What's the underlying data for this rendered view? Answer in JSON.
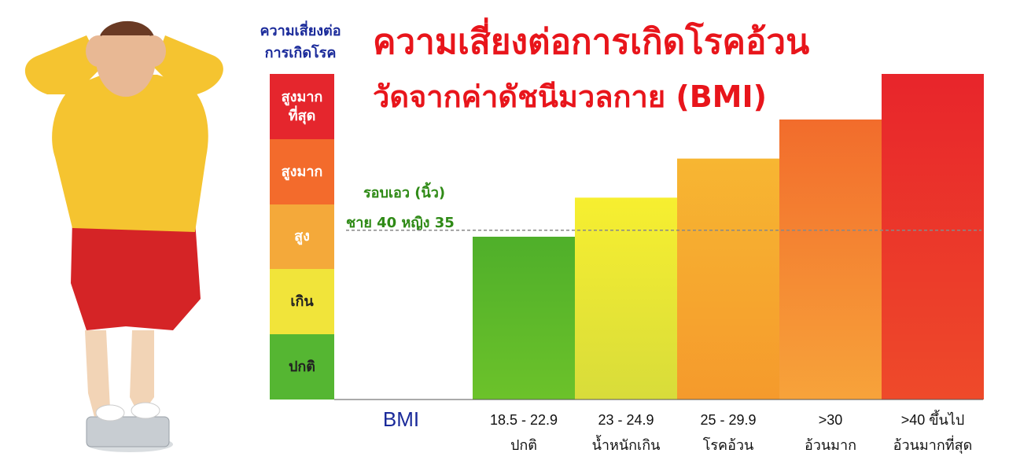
{
  "risk_scale": {
    "header": [
      "ความเสี่ยงต่อ",
      "การเกิดโรค"
    ],
    "levels": [
      {
        "label": "สูงมาก\nที่สุด",
        "color": "#e5262d"
      },
      {
        "label": "สูงมาก",
        "color": "#f36b2c"
      },
      {
        "label": "สูง",
        "color": "#f4a93a"
      },
      {
        "label": "เกิน",
        "color": "#f1e43a"
      },
      {
        "label": "ปกติ",
        "color": "#55b632"
      }
    ]
  },
  "title": {
    "line1": "ความเสี่ยงต่อการเกิดโรคอ้วน",
    "line2": "วัดจากค่าดัชนีมวลกาย (BMI)"
  },
  "waist": {
    "line1": "รอบเอว (นิ้ว)",
    "line2": "ชาย 40  หญิง 35"
  },
  "chart_data": {
    "type": "bar",
    "xlabel": "BMI",
    "ylabel": "ความเสี่ยงต่อการเกิดโรค",
    "categories": [
      "18.5 - 22.9",
      "23 - 24.9",
      "25 - 29.9",
      ">30",
      ">40 ขึ้นไป"
    ],
    "category_names": [
      "ปกติ",
      "น้ำหนักเกิน",
      "โรคอ้วน",
      "อ้วนมาก",
      "อ้วนมากที่สุด"
    ],
    "values": [
      2.5,
      3.1,
      3.7,
      4.3,
      5.0
    ],
    "ylim": [
      0,
      5
    ],
    "reference_line": 2.6,
    "colors": [
      [
        "#4faf2a",
        "#6cc22a"
      ],
      [
        "#f7ef30",
        "#d8dc3a"
      ],
      [
        "#f7b632",
        "#f59a2c"
      ],
      [
        "#f26c2c",
        "#f7a33a"
      ],
      [
        "#e8252b",
        "#ee4a2a"
      ]
    ]
  }
}
